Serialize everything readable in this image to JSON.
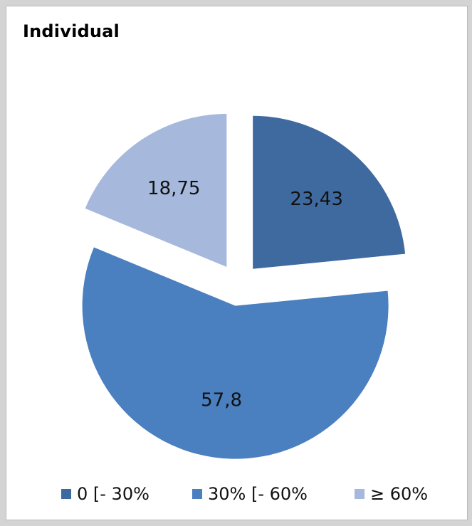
{
  "chart_data": {
    "type": "pie",
    "title": "Individual",
    "slices": [
      {
        "label": "0 [- 30%",
        "value": 23.43,
        "value_label": "23,43",
        "color": "#3f6aa0"
      },
      {
        "label": "30% [- 60%",
        "value": 57.8,
        "value_label": "57,8",
        "color": "#4a7fc0"
      },
      {
        "label": "≥ 60%",
        "value": 18.75,
        "value_label": "18,75",
        "color": "#a6b9dc"
      }
    ],
    "exploded": true,
    "legend_position": "bottom"
  }
}
